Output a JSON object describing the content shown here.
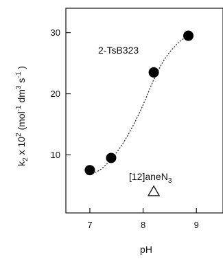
{
  "chart_data": {
    "type": "scatter",
    "x": [
      7.0,
      7.4,
      8.2,
      8.85
    ],
    "series": [
      {
        "values": [
          7.5,
          9.5,
          23.5,
          29.5
        ]
      }
    ],
    "fit_curve": {
      "style": "dotted",
      "points": [
        [
          7.0,
          6.8
        ],
        [
          7.2,
          7.6
        ],
        [
          7.4,
          9.3
        ],
        [
          7.6,
          11.6
        ],
        [
          7.8,
          14.6
        ],
        [
          8.0,
          18.2
        ],
        [
          8.2,
          22.3
        ],
        [
          8.4,
          25.6
        ],
        [
          8.6,
          27.8
        ],
        [
          8.8,
          29.3
        ],
        [
          8.9,
          29.7
        ]
      ]
    },
    "extra_point": {
      "x": 8.2,
      "y": 4.0,
      "marker": "triangle-open"
    },
    "annotations": [
      {
        "text": "2-TsB323"
      },
      {
        "text_main": "[12]aneN",
        "text_sub": "3"
      }
    ],
    "xlabel": "pH",
    "ylabel": {
      "k": "k",
      "k_sub": "2",
      "mult": " x 10",
      "exp": "2",
      "unit_open": " (mol",
      "mol_exp": "-1",
      "dm": " dm",
      "dm_exp": "3",
      "s": " s",
      "s_exp": "-1",
      "unit_close": " )"
    },
    "xlim": [
      6.55,
      9.5
    ],
    "ylim": [
      0.5,
      34
    ],
    "xticks": [
      "7",
      "8",
      "9"
    ],
    "yticks": [
      "10",
      "20",
      "30"
    ],
    "grid": false
  }
}
